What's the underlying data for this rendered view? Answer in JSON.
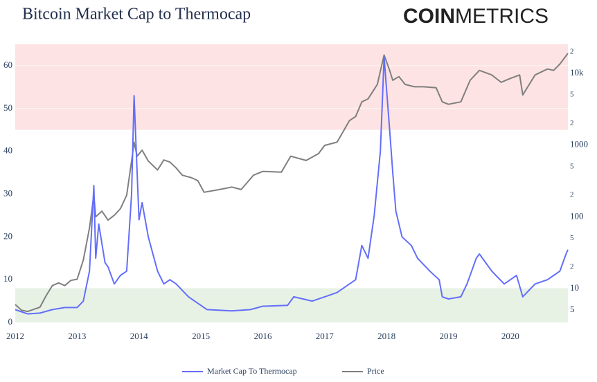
{
  "chart_data": {
    "type": "line",
    "title": "Bitcoin Market Cap to Thermocap",
    "logo_bold": "COIN",
    "logo_light": "METRICS",
    "xlim": [
      2012,
      2020.93
    ],
    "xticks": [
      2012,
      2013,
      2014,
      2015,
      2016,
      2017,
      2018,
      2019,
      2020
    ],
    "ylim": [
      0,
      65
    ],
    "yticks": [
      0,
      10,
      20,
      30,
      40,
      50,
      60
    ],
    "y2lim": [
      3.37,
      25400
    ],
    "y2log": true,
    "y2ticks": [
      5,
      10,
      {
        "value": 20,
        "label": "2"
      },
      {
        "value": 50,
        "label": "5"
      },
      100,
      {
        "value": 200,
        "label": "2"
      },
      {
        "value": 500,
        "label": "5"
      },
      1000,
      {
        "value": 2000,
        "label": "2"
      },
      {
        "value": 5000,
        "label": "5"
      },
      {
        "value": 10000,
        "label": "10k"
      },
      {
        "value": 20000,
        "label": "2"
      }
    ],
    "grid": true,
    "bands": [
      {
        "from": 45,
        "to": 65,
        "color": "#fde3e3"
      },
      {
        "from": 0,
        "to": 8,
        "color": "#e7f2e5"
      }
    ],
    "legend": "bottom",
    "series": [
      {
        "name": "Market Cap To Thermocap",
        "color": "#636efa",
        "x": [
          2012.0,
          2012.1,
          2012.2,
          2012.4,
          2012.6,
          2012.8,
          2013.0,
          2013.1,
          2013.2,
          2013.27,
          2013.3,
          2013.35,
          2013.45,
          2013.5,
          2013.6,
          2013.7,
          2013.8,
          2013.88,
          2013.92,
          2013.97,
          2014.0,
          2014.05,
          2014.15,
          2014.3,
          2014.4,
          2014.5,
          2014.6,
          2014.8,
          2015.0,
          2015.1,
          2015.5,
          2015.8,
          2016.0,
          2016.4,
          2016.5,
          2016.8,
          2017.0,
          2017.2,
          2017.4,
          2017.5,
          2017.6,
          2017.7,
          2017.8,
          2017.9,
          2017.96,
          2018.05,
          2018.1,
          2018.15,
          2018.25,
          2018.4,
          2018.5,
          2018.7,
          2018.85,
          2018.9,
          2019.0,
          2019.2,
          2019.3,
          2019.45,
          2019.5,
          2019.7,
          2019.9,
          2020.0,
          2020.1,
          2020.2,
          2020.4,
          2020.6,
          2020.7,
          2020.8,
          2020.9,
          2020.93
        ],
        "values": [
          3,
          2.5,
          2,
          2.2,
          3,
          3.5,
          3.5,
          5,
          12,
          32,
          15,
          23,
          14,
          13,
          9,
          11,
          12,
          30,
          53,
          35,
          24,
          28,
          20,
          12,
          9,
          10,
          9,
          6,
          4,
          3,
          2.7,
          3,
          3.8,
          4,
          6,
          5,
          6,
          7,
          9,
          10,
          18,
          15,
          25,
          40,
          62,
          45,
          35,
          26,
          20,
          18,
          15,
          12,
          10,
          6,
          5.5,
          6,
          9,
          15,
          16,
          12,
          9,
          10,
          11,
          6,
          9,
          10,
          11,
          12,
          16,
          17
        ]
      },
      {
        "name": "Price",
        "color": "#7f7f7f",
        "axis": "y2",
        "x": [
          2012.0,
          2012.1,
          2012.2,
          2012.4,
          2012.5,
          2012.6,
          2012.7,
          2012.8,
          2012.9,
          2013.0,
          2013.1,
          2013.2,
          2013.27,
          2013.3,
          2013.4,
          2013.5,
          2013.6,
          2013.7,
          2013.8,
          2013.88,
          2013.92,
          2013.97,
          2014.05,
          2014.15,
          2014.3,
          2014.4,
          2014.5,
          2014.6,
          2014.7,
          2014.85,
          2014.95,
          2015.05,
          2015.3,
          2015.5,
          2015.65,
          2015.85,
          2016.0,
          2016.3,
          2016.45,
          2016.7,
          2016.9,
          2017.0,
          2017.2,
          2017.4,
          2017.5,
          2017.6,
          2017.7,
          2017.85,
          2017.96,
          2018.05,
          2018.1,
          2018.2,
          2018.3,
          2018.45,
          2018.6,
          2018.8,
          2018.9,
          2019.0,
          2019.2,
          2019.35,
          2019.5,
          2019.7,
          2019.85,
          2020.0,
          2020.15,
          2020.2,
          2020.4,
          2020.6,
          2020.7,
          2020.8,
          2020.93
        ],
        "values": [
          6,
          5,
          4.8,
          5.5,
          8,
          11,
          12,
          11,
          13,
          13.5,
          25,
          70,
          200,
          100,
          120,
          90,
          105,
          130,
          200,
          600,
          1100,
          700,
          850,
          600,
          450,
          620,
          580,
          480,
          380,
          350,
          320,
          220,
          240,
          260,
          240,
          380,
          430,
          420,
          700,
          610,
          760,
          990,
          1100,
          2200,
          2500,
          4000,
          4400,
          7000,
          18000,
          11000,
          8000,
          9000,
          7000,
          6500,
          6500,
          6300,
          4000,
          3700,
          4000,
          8000,
          11000,
          9500,
          7500,
          8500,
          9500,
          5000,
          9500,
          11500,
          11000,
          13500,
          19000
        ]
      }
    ]
  }
}
